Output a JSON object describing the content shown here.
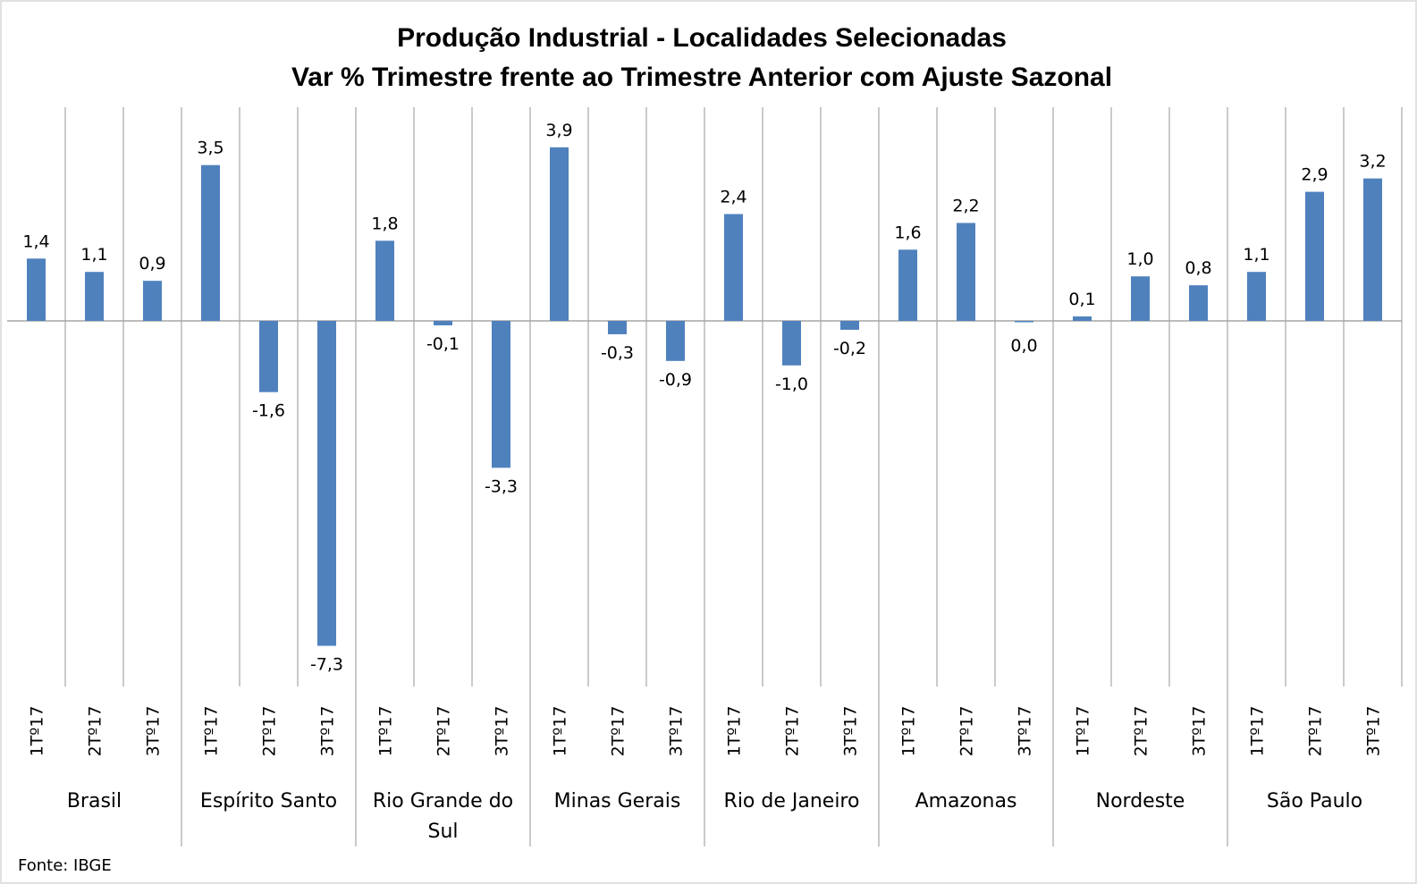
{
  "chart_data": {
    "type": "bar",
    "title": "Produção Industrial - Localidades Selecionadas",
    "subtitle": "Var % Trimestre frente ao Trimestre Anterior com Ajuste Sazonal",
    "source": "Fonte: IBGE",
    "bar_color": "#4F81BD",
    "grid": false,
    "groups": [
      {
        "name": "Brasil",
        "categories": [
          "1Tº17",
          "2Tº17",
          "3Tº17"
        ],
        "values": [
          1.4,
          1.1,
          0.9
        ],
        "labels": [
          "1,4",
          "1,1",
          "0,9"
        ]
      },
      {
        "name": "Espírito Santo",
        "categories": [
          "1Tº17",
          "2Tº17",
          "3Tº17"
        ],
        "values": [
          3.5,
          -1.6,
          -7.3
        ],
        "labels": [
          "3,5",
          "-1,6",
          "-7,3"
        ]
      },
      {
        "name": "Rio Grande do Sul",
        "categories": [
          "1Tº17",
          "2Tº17",
          "3Tº17"
        ],
        "values": [
          1.8,
          -0.1,
          -3.3
        ],
        "labels": [
          "1,8",
          "-0,1",
          "-3,3"
        ]
      },
      {
        "name": "Minas Gerais",
        "categories": [
          "1Tº17",
          "2Tº17",
          "3Tº17"
        ],
        "values": [
          3.9,
          -0.3,
          -0.9
        ],
        "labels": [
          "3,9",
          "-0,3",
          "-0,9"
        ]
      },
      {
        "name": "Rio de Janeiro",
        "categories": [
          "1Tº17",
          "2Tº17",
          "3Tº17"
        ],
        "values": [
          2.4,
          -1.0,
          -0.2
        ],
        "labels": [
          "2,4",
          "-1,0",
          "-0,2"
        ]
      },
      {
        "name": "Amazonas",
        "categories": [
          "1Tº17",
          "2Tº17",
          "3Tº17"
        ],
        "values": [
          1.6,
          2.2,
          0.0
        ],
        "labels": [
          "1,6",
          "2,2",
          "0,0"
        ]
      },
      {
        "name": "Nordeste",
        "categories": [
          "1Tº17",
          "2Tº17",
          "3Tº17"
        ],
        "values": [
          0.1,
          1.0,
          0.8
        ],
        "labels": [
          "0,1",
          "1,0",
          "0,8"
        ]
      },
      {
        "name": "São Paulo",
        "categories": [
          "1Tº17",
          "2Tº17",
          "3Tº17"
        ],
        "values": [
          1.1,
          2.9,
          3.2
        ],
        "labels": [
          "1,1",
          "2,9",
          "3,2"
        ]
      }
    ]
  }
}
